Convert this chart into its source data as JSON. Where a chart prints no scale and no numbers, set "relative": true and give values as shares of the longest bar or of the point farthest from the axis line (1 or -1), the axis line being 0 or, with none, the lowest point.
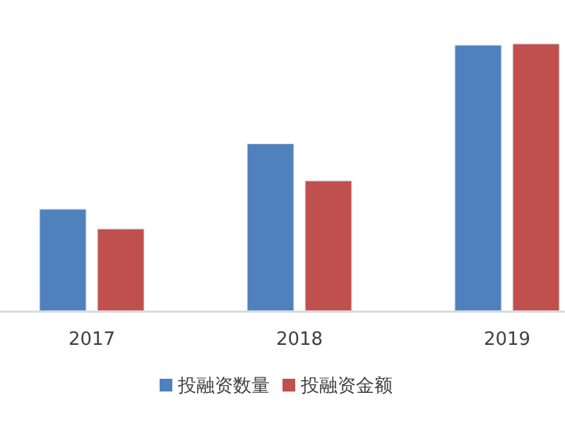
{
  "chart_data": {
    "type": "bar",
    "relative": true,
    "categories": [
      "2017",
      "2018",
      "2019"
    ],
    "legend": "bottom",
    "series": [
      {
        "name": "投融资数量",
        "color": "#4f81bd",
        "values": [
          0.381,
          0.626,
          0.995
        ]
      },
      {
        "name": "投融资金额",
        "color": "#c0504d",
        "values": [
          0.307,
          0.487,
          1
        ]
      }
    ]
  }
}
